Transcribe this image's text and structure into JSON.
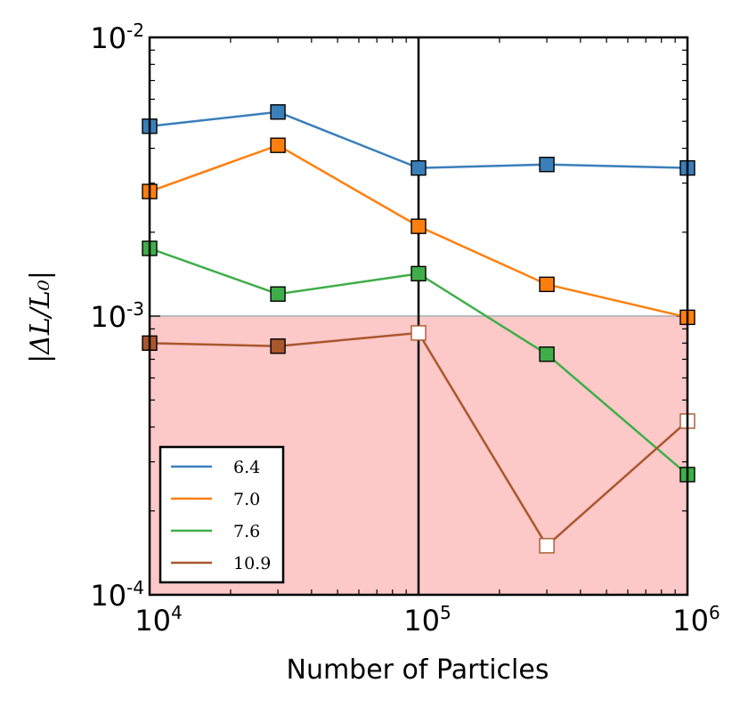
{
  "chart_data": {
    "type": "line",
    "title": "",
    "xlabel": "Number of Particles",
    "ylabel": "|ΔL/L₀|",
    "xscale": "log",
    "yscale": "log",
    "xlim": [
      10000,
      1000000
    ],
    "ylim": [
      0.0001,
      0.01
    ],
    "x_ticks": [
      {
        "base": "10",
        "exp": "4"
      },
      {
        "base": "10",
        "exp": "5"
      },
      {
        "base": "10",
        "exp": "6"
      }
    ],
    "y_ticks": [
      {
        "base": "10",
        "exp": "-4"
      },
      {
        "base": "10",
        "exp": "-3"
      },
      {
        "base": "10",
        "exp": "-2"
      }
    ],
    "x": [
      10000,
      30000,
      100000,
      300000,
      1000000
    ],
    "shaded_region": {
      "y_from": 0.0001,
      "y_to": 0.001,
      "color": "#fcc8c8"
    },
    "vertical_line_x": 100000,
    "legend_position": "lower-left",
    "series": [
      {
        "name": "6.4",
        "color": "#3a7fba",
        "values": [
          0.0048,
          0.0054,
          0.0034,
          0.0035,
          0.0034
        ],
        "hollow": [
          false,
          false,
          false,
          false,
          false
        ]
      },
      {
        "name": "7.0",
        "color": "#ff7f0e",
        "values": [
          0.0028,
          0.0041,
          0.0021,
          0.0013,
          0.00099
        ],
        "hollow": [
          false,
          false,
          false,
          false,
          false
        ]
      },
      {
        "name": "7.6",
        "color": "#3fae49",
        "values": [
          0.00175,
          0.0012,
          0.00142,
          0.00073,
          0.00027
        ],
        "hollow": [
          false,
          false,
          false,
          false,
          false
        ]
      },
      {
        "name": "10.9",
        "color": "#a9572d",
        "values": [
          0.0008,
          0.00078,
          0.00087,
          0.00015,
          0.00042
        ],
        "hollow": [
          false,
          false,
          true,
          true,
          true
        ]
      }
    ]
  }
}
